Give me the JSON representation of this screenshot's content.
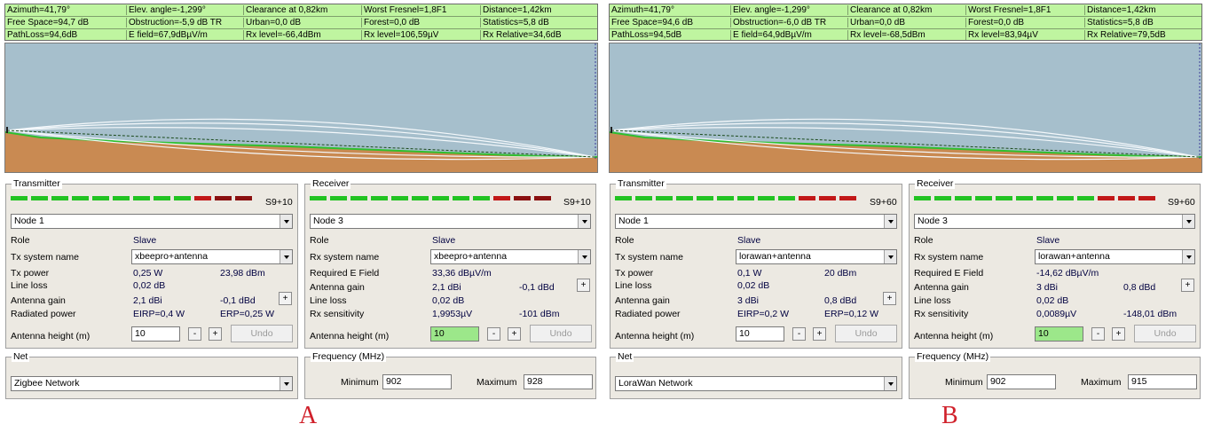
{
  "panels": [
    {
      "id": "a",
      "status": [
        [
          "Azimuth=41,79°",
          "Elev. angle=-1,299°",
          "Clearance at 0,82km",
          "Worst Fresnel=1,8F1",
          "Distance=1,42km"
        ],
        [
          "Free Space=94,7 dB",
          "Obstruction=-5,9 dB TR",
          "Urban=0,0 dB",
          "Forest=0,0 dB",
          "Statistics=5,8 dB"
        ],
        [
          "PathLoss=94,6dB",
          "E field=67,9dBµV/m",
          "Rx level=-66,4dBm",
          "Rx level=106,59µV",
          "Rx Relative=34,6dB"
        ]
      ],
      "transmitter": {
        "title": "Transmitter",
        "signal_label": "S9+10",
        "signal_red_segments": 3,
        "node": "Node 1",
        "role_label": "Role",
        "role_value": "Slave",
        "system_label": "Tx system name",
        "system_value": "xbeepro+antenna",
        "power_label": "Tx power",
        "power_w": "0,25 W",
        "power_dbm": "23,98 dBm",
        "line_loss_label": "Line loss",
        "line_loss": "0,02 dB",
        "gain_label": "Antenna gain",
        "gain_dbi": "2,1 dBi",
        "gain_dbd": "-0,1 dBd",
        "radiated_label": "Radiated power",
        "eirp": "EIRP=0,4 W",
        "erp": "ERP=0,25 W",
        "height_label": "Antenna height (m)",
        "height": "10",
        "undo": "Undo"
      },
      "receiver": {
        "title": "Receiver",
        "signal_label": "S9+10",
        "signal_red_segments": 3,
        "node": "Node 3",
        "role_label": "Role",
        "role_value": "Slave",
        "system_label": "Rx system name",
        "system_value": "xbeepro+antenna",
        "req_label": "Required E Field",
        "req_value": "33,36 dBµV/m",
        "gain_label": "Antenna gain",
        "gain_dbi": "2,1 dBi",
        "gain_dbd": "-0,1 dBd",
        "line_loss_label": "Line loss",
        "line_loss": "0,02 dB",
        "sens_label": "Rx sensitivity",
        "sens_uv": "1,9953µV",
        "sens_dbm": "-101 dBm",
        "height_label": "Antenna height (m)",
        "height": "10",
        "undo": "Undo"
      },
      "net": {
        "title": "Net",
        "value": "Zigbee Network"
      },
      "frequency": {
        "title": "Frequency (MHz)",
        "min_label": "Minimum",
        "min": "902",
        "max_label": "Maximum",
        "max": "928"
      },
      "caption": "A"
    },
    {
      "id": "b",
      "status": [
        [
          "Azimuth=41,79°",
          "Elev. angle=-1,299°",
          "Clearance at 0,82km",
          "Worst Fresnel=1,8F1",
          "Distance=1,42km"
        ],
        [
          "Free Space=94,6 dB",
          "Obstruction=-6,0 dB TR",
          "Urban=0,0 dB",
          "Forest=0,0 dB",
          "Statistics=5,8 dB"
        ],
        [
          "PathLoss=94,5dB",
          "E field=64,9dBµV/m",
          "Rx level=-68,5dBm",
          "Rx level=83,94µV",
          "Rx Relative=79,5dB"
        ]
      ],
      "transmitter": {
        "title": "Transmitter",
        "signal_label": "S9+60",
        "signal_red_segments": 3,
        "node": "Node 1",
        "role_label": "Role",
        "role_value": "Slave",
        "system_label": "Tx system name",
        "system_value": "lorawan+antenna",
        "power_label": "Tx power",
        "power_w": "0,1 W",
        "power_dbm": "20 dBm",
        "line_loss_label": "Line loss",
        "line_loss": "0,02 dB",
        "gain_label": "Antenna gain",
        "gain_dbi": "3 dBi",
        "gain_dbd": "0,8 dBd",
        "radiated_label": "Radiated power",
        "eirp": "EIRP=0,2 W",
        "erp": "ERP=0,12 W",
        "height_label": "Antenna height (m)",
        "height": "10",
        "undo": "Undo"
      },
      "receiver": {
        "title": "Receiver",
        "signal_label": "S9+60",
        "signal_red_segments": 3,
        "node": "Node 3",
        "role_label": "Role",
        "role_value": "Slave",
        "system_label": "Rx system name",
        "system_value": "lorawan+antenna",
        "req_label": "Required E Field",
        "req_value": "-14,62 dBµV/m",
        "gain_label": "Antenna gain",
        "gain_dbi": "3 dBi",
        "gain_dbd": "0,8 dBd",
        "line_loss_label": "Line loss",
        "line_loss": "0,02 dB",
        "sens_label": "Rx sensitivity",
        "sens_uv": "0,0089µV",
        "sens_dbm": "-148,01 dBm",
        "height_label": "Antenna height (m)",
        "height": "10",
        "undo": "Undo"
      },
      "net": {
        "title": "Net",
        "value": "LoraWan Network"
      },
      "frequency": {
        "title": "Frequency (MHz)",
        "min_label": "Minimum",
        "min": "902",
        "max_label": "Maximum",
        "max": "915"
      },
      "caption": "B"
    }
  ],
  "colors": {
    "status_bg": "#bff5a0",
    "sky": "#a6bfcc",
    "terrain": "#c98a52",
    "terrain_edge": "#2fbf2f",
    "signal_green": "#22c322",
    "signal_red": "#c21818",
    "caption": "#d0202a"
  }
}
